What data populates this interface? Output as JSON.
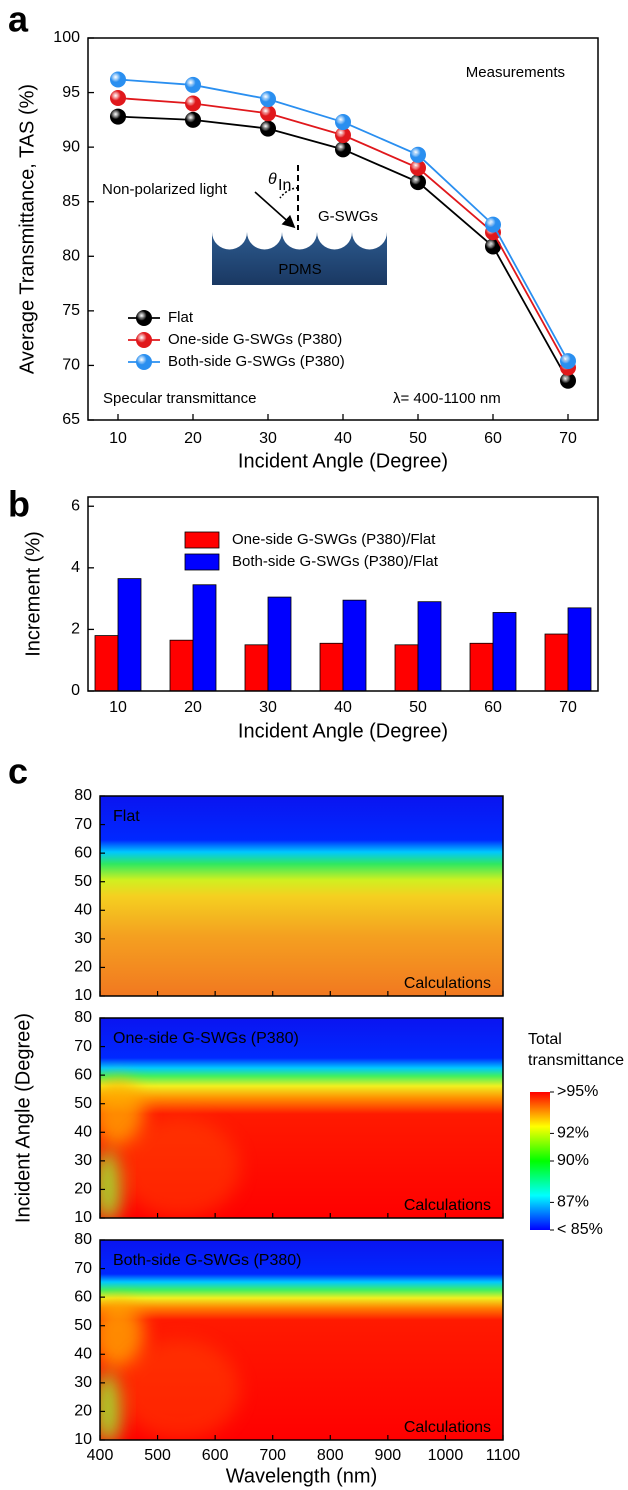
{
  "chart_data": [
    {
      "type": "line",
      "panel_label": "a",
      "xlabel": "Incident Angle (Degree)",
      "ylabel": "Average Transmittance, TAS (%)",
      "x": [
        10,
        20,
        30,
        40,
        50,
        60,
        70
      ],
      "xlim": [
        6,
        74
      ],
      "xticks": [
        10,
        20,
        30,
        40,
        50,
        60,
        70
      ],
      "ylim": [
        65,
        100
      ],
      "yticks": [
        65,
        70,
        75,
        80,
        85,
        90,
        95,
        100
      ],
      "series": [
        {
          "name": "Flat",
          "color": "#000000",
          "values": [
            92.8,
            92.5,
            91.7,
            89.8,
            86.8,
            80.9,
            68.6
          ]
        },
        {
          "name": "One-side G-SWGs (P380)",
          "color": "#e0181c",
          "values": [
            94.5,
            94.0,
            93.1,
            91.1,
            88.1,
            82.2,
            69.8
          ]
        },
        {
          "name": "Both-side G-SWGs (P380)",
          "color": "#2a8ff0",
          "values": [
            96.2,
            95.7,
            94.4,
            92.3,
            89.3,
            82.9,
            70.4
          ]
        }
      ],
      "annotations": [
        "Measurements",
        "Non-polarized light",
        "G-SWGs",
        "PDMS",
        "Specular transmittance",
        "λ= 400-1100 nm"
      ],
      "angle_symbol": "θ",
      "angle_subscript": "In",
      "legend": "lower left"
    },
    {
      "type": "bar",
      "panel_label": "b",
      "xlabel": "Incident Angle (Degree)",
      "ylabel": "Increment (%)",
      "x": [
        10,
        20,
        30,
        40,
        50,
        60,
        70
      ],
      "xlim": [
        6,
        74
      ],
      "xticks": [
        10,
        20,
        30,
        40,
        50,
        60,
        70
      ],
      "ylim": [
        0,
        6.3
      ],
      "yticks": [
        0,
        2,
        4,
        6
      ],
      "series": [
        {
          "name": "One-side G-SWGs (P380)/Flat",
          "color": "#ff0000",
          "values": [
            1.8,
            1.65,
            1.5,
            1.55,
            1.5,
            1.55,
            1.85
          ]
        },
        {
          "name": "Both-side G-SWGs (P380)/Flat",
          "color": "#0000ff",
          "values": [
            3.65,
            3.45,
            3.05,
            2.95,
            2.9,
            2.55,
            2.7
          ]
        }
      ],
      "legend": "upper center"
    },
    {
      "type": "heatmap",
      "panel_label": "c",
      "xlabel": "Wavelength (nm)",
      "ylabel": "Incident Angle (Degree)",
      "xlim": [
        400,
        1100
      ],
      "xticks": [
        400,
        500,
        600,
        700,
        800,
        900,
        1000,
        1100
      ],
      "ylim": [
        10,
        80
      ],
      "yticks": [
        10,
        20,
        30,
        40,
        50,
        60,
        70,
        80
      ],
      "panels": [
        {
          "title": "Flat",
          "note": "Calculations"
        },
        {
          "title": "One-side G-SWGs (P380)",
          "note": "Calculations"
        },
        {
          "title": "Both-side G-SWGs (P380)",
          "note": "Calculations"
        }
      ],
      "colorbar": {
        "title_lines": [
          "Total",
          "transmittance"
        ],
        "clim": [
          85,
          95
        ],
        "colors": [
          "#0000ff",
          "#00ffff",
          "#00ff00",
          "#ffff00",
          "#ff0000"
        ],
        "ticks": [
          {
            "value": 95,
            "label": ">95%"
          },
          {
            "value": 92,
            "label": "92%"
          },
          {
            "value": 90,
            "label": "90%"
          },
          {
            "value": 87,
            "label": "87%"
          },
          {
            "value": 85,
            "label": "< 85%"
          }
        ]
      }
    }
  ]
}
